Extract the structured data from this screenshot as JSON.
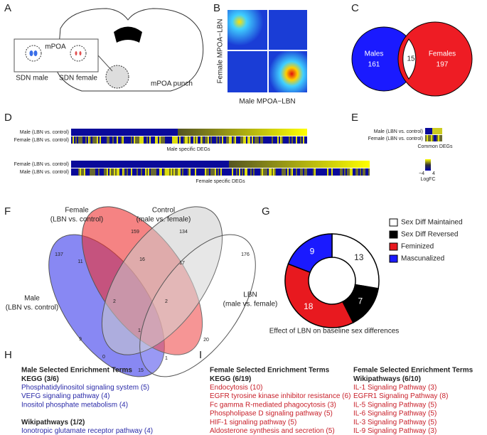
{
  "panels": {
    "A": {
      "letter": "A",
      "labels": [
        "mPOA",
        "SDN male",
        "SDN female",
        "mPOA punch"
      ]
    },
    "B": {
      "letter": "B",
      "ylabel": "Female MPOA−LBN",
      "xlabel": "Male MPOA−LBN"
    },
    "C": {
      "letter": "C",
      "left_name": "Males",
      "left_count": "161",
      "overlap": "15",
      "right_name": "Females",
      "right_count": "197"
    },
    "D": {
      "letter": "D",
      "block1_rows": [
        "Male (LBN vs. control)",
        "Female (LBN vs. control)"
      ],
      "block1_caption": "Male specific DEGs",
      "block2_rows": [
        "Female (LBN vs. control)",
        "Male (LBN vs. control)"
      ],
      "block2_caption": "Female specific DEGs"
    },
    "E": {
      "letter": "E",
      "rows": [
        "Male (LBN vs. control)",
        "Female (LBN vs. control)"
      ],
      "caption": "Common DEGs",
      "scale_min": "−4",
      "scale_max": "4",
      "scale_label": "LogFC"
    },
    "F": {
      "letter": "F",
      "sets": [
        [
          "Female",
          "(LBN vs. control)"
        ],
        [
          "Control",
          "(male vs. female)"
        ],
        [
          "Male",
          "(LBN vs. control)"
        ],
        [
          "LBN",
          "(male vs. female)"
        ]
      ],
      "counts": [
        "159",
        "134",
        "137",
        "11",
        "16",
        "17",
        "176",
        "2",
        "2",
        "1",
        "9",
        "20",
        "0",
        "1",
        "15"
      ]
    },
    "G": {
      "letter": "G"
    },
    "H": {
      "letter": "H",
      "title": "Male Selected Enrichment Terms",
      "groups": [
        {
          "heading": "KEGG (3/6)",
          "terms": [
            "Phosphatidylinositol signaling system (5)",
            "VEFG signaling pathway (4)",
            "Inositol phosphate metabolism (4)"
          ]
        },
        {
          "heading": "Wikipathways (1/2)",
          "terms": [
            "Ionotropic glutamate receptor pathway (4)"
          ]
        }
      ]
    },
    "I": {
      "letter": "I",
      "columns": [
        {
          "title": "Female Selected Enrichment Terms",
          "heading": "KEGG (6/19)",
          "terms": [
            "Endocytosis (10)",
            "EGFR tyrosine kinase inhibitor resistance (6)",
            "Fc gamma R-mediated phagocytosis (3)",
            "Phospholipase D signaling pathway (5)",
            "HIF-1 signaling pathway (5)",
            "Aldosterone synthesis and secretion (5)"
          ]
        },
        {
          "title": "Female Selected Enrichment Terms",
          "heading": "Wikipathways (6/10)",
          "terms": [
            "IL-1 Signaling Pathway (3)",
            "EGFR1 Signaling Pathway (8)",
            "IL-5 Signaling Pathway (5)",
            "IL-6 Signaling Pathway (5)",
            "IL-3 Signaling Pathway (5)",
            "IL-9 Signaling Pathway (3)"
          ]
        }
      ]
    }
  },
  "chart_data": {
    "type": "donut",
    "title": "Effect of LBN on baseline sex differences",
    "categories": [
      "Sex Diff Maintained",
      "Sex Diff Reversed",
      "Feminized",
      "Mascunalized"
    ],
    "values": [
      13,
      7,
      18,
      9
    ],
    "colors": [
      "#ffffff",
      "#000000",
      "#e8191f",
      "#1a1aff"
    ]
  }
}
